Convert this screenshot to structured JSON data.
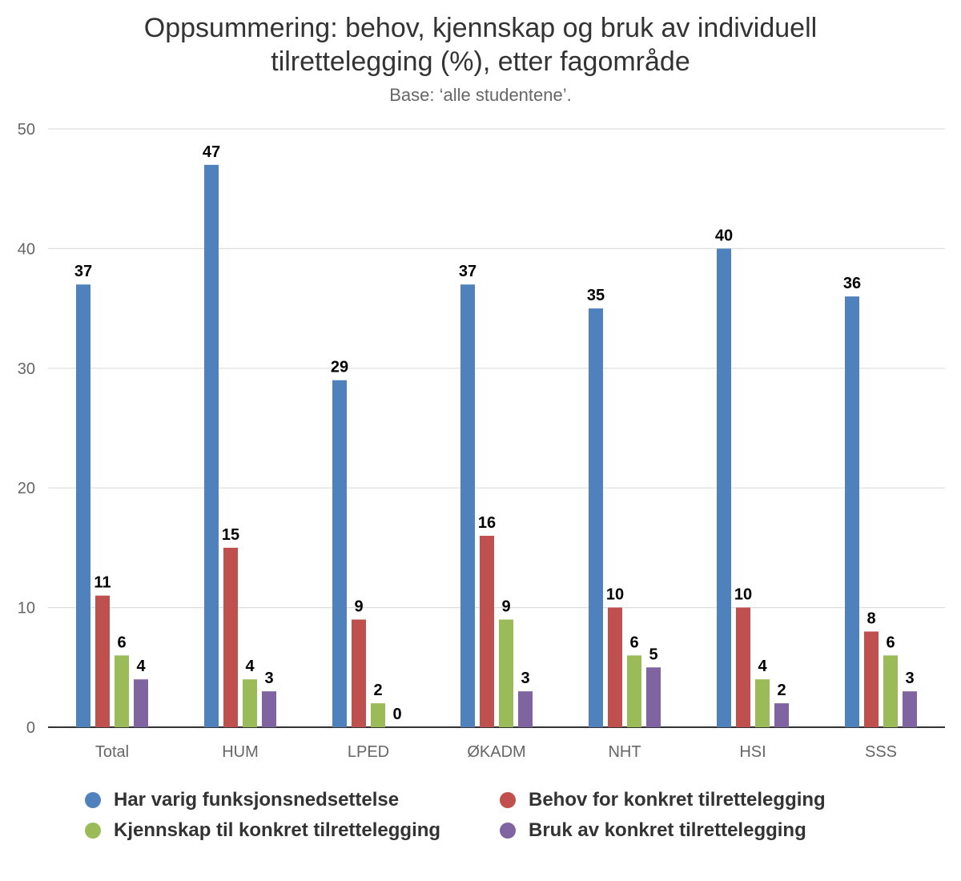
{
  "chart_data": {
    "type": "bar",
    "title_lines": [
      "Oppsummering: behov, kjennskap og bruk av individuell",
      "tilrettelegging (%), etter fagområde"
    ],
    "subtitle": "Base: ‘alle studentene’.",
    "categories": [
      "Total",
      "HUM",
      "LPED",
      "ØKADM",
      "NHT",
      "HSI",
      "SSS"
    ],
    "series": [
      {
        "name": "Har varig funksjonsnedsettelse",
        "color": "#4f81bd",
        "values": [
          37,
          47,
          29,
          37,
          35,
          40,
          36
        ]
      },
      {
        "name": "Behov for konkret tilrettelegging",
        "color": "#c0504d",
        "values": [
          11,
          15,
          9,
          16,
          10,
          10,
          8
        ]
      },
      {
        "name": "Kjennskap til konkret tilrettelegging",
        "color": "#9bbb59",
        "values": [
          6,
          4,
          2,
          9,
          6,
          4,
          6
        ]
      },
      {
        "name": "Bruk av konkret tilrettelegging",
        "color": "#8064a2",
        "values": [
          4,
          3,
          0,
          3,
          5,
          2,
          3
        ]
      }
    ],
    "ylim": [
      0,
      50
    ],
    "yticks": [
      0,
      10,
      20,
      30,
      40,
      50
    ],
    "grid": true,
    "data_labels": true,
    "legend_position": "bottom"
  }
}
